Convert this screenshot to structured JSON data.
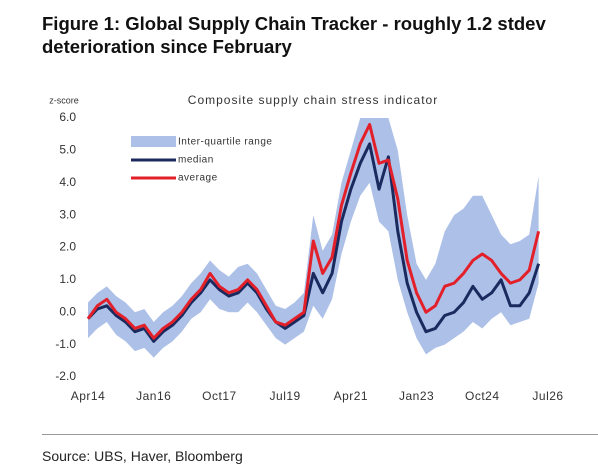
{
  "figure_title": [
    "Figure 1: Global Supply Chain Tracker - roughly 1.2 stdev",
    "deterioration since February"
  ],
  "source": "Source: UBS, Haver, Bloomberg",
  "chart_data": {
    "type": "line",
    "title": "Composite supply chain stress indicator",
    "y_label": "z-score",
    "categories": [
      "Apr14",
      null,
      null,
      null,
      null,
      null,
      null,
      "Jan16",
      null,
      null,
      null,
      null,
      null,
      null,
      "Oct17",
      null,
      null,
      null,
      null,
      null,
      null,
      "Jul19",
      null,
      null,
      null,
      null,
      null,
      null,
      "Apr21",
      null,
      null,
      null,
      null,
      null,
      null,
      "Jan23",
      null,
      null,
      null,
      null,
      null,
      null,
      "Oct24",
      null,
      null,
      null,
      null,
      null,
      null,
      "Jul26"
    ],
    "ylim": [
      -2,
      6
    ],
    "yticks": [
      {
        "value": 6,
        "label": "6.0"
      },
      {
        "value": 5,
        "label": "5.0"
      },
      {
        "value": 4,
        "label": "4.0"
      },
      {
        "value": 3,
        "label": "3.0"
      },
      {
        "value": 2,
        "label": "2.0"
      },
      {
        "value": 1,
        "label": "1.0"
      },
      {
        "value": 0,
        "label": "0.0"
      },
      {
        "value": -1,
        "label": "-1.0"
      },
      {
        "value": -2,
        "label": "-2.0"
      }
    ],
    "band": {
      "name": "Inter-quartile range",
      "color": "#adc0e8",
      "low": [
        -0.8,
        -0.5,
        -0.3,
        -0.7,
        -0.9,
        -1.2,
        -1.1,
        -1.4,
        -1.1,
        -0.9,
        -0.6,
        -0.2,
        0.0,
        0.4,
        0.1,
        0.0,
        0.0,
        0.3,
        0.0,
        -0.4,
        -0.8,
        -1.0,
        -0.8,
        -0.6,
        0.2,
        -0.2,
        0.4,
        1.8,
        2.8,
        3.6,
        4.0,
        2.8,
        2.5,
        1.0,
        0.0,
        -0.8,
        -1.3,
        -1.1,
        -1.0,
        -0.8,
        -0.6,
        -0.3,
        -0.5,
        -0.2,
        0.0,
        -0.4,
        -0.3,
        -0.2,
        0.9,
        null
      ],
      "high": [
        0.3,
        0.6,
        0.8,
        0.5,
        0.3,
        0.0,
        0.1,
        -0.3,
        0.0,
        0.2,
        0.5,
        0.9,
        1.2,
        1.6,
        1.3,
        1.1,
        1.4,
        1.5,
        1.2,
        0.7,
        0.2,
        0.1,
        0.3,
        0.6,
        3.0,
        1.9,
        2.4,
        4.0,
        5.0,
        6.0,
        6.0,
        6.0,
        6.0,
        5.0,
        3.0,
        1.5,
        1.0,
        1.5,
        2.5,
        3.0,
        3.2,
        3.6,
        3.6,
        3.0,
        2.4,
        2.1,
        2.2,
        2.4,
        4.2,
        null
      ]
    },
    "series": [
      {
        "name": "median",
        "color": "#1b2a5e",
        "values": [
          -0.2,
          0.1,
          0.2,
          -0.1,
          -0.3,
          -0.6,
          -0.5,
          -0.9,
          -0.6,
          -0.4,
          -0.1,
          0.3,
          0.6,
          1.0,
          0.7,
          0.5,
          0.6,
          0.9,
          0.6,
          0.1,
          -0.3,
          -0.5,
          -0.3,
          -0.1,
          1.2,
          0.6,
          1.2,
          2.8,
          3.8,
          4.6,
          5.2,
          3.8,
          4.8,
          2.5,
          0.9,
          0.0,
          -0.6,
          -0.5,
          -0.1,
          0.0,
          0.3,
          0.8,
          0.4,
          0.6,
          1.0,
          0.2,
          0.2,
          0.6,
          1.5,
          null
        ]
      },
      {
        "name": "average",
        "color": "#e3202a",
        "values": [
          -0.2,
          0.2,
          0.4,
          0.0,
          -0.2,
          -0.5,
          -0.4,
          -0.8,
          -0.5,
          -0.3,
          0.0,
          0.4,
          0.7,
          1.2,
          0.8,
          0.6,
          0.7,
          1.0,
          0.7,
          0.2,
          -0.3,
          -0.4,
          -0.2,
          0.0,
          2.2,
          1.2,
          1.7,
          3.3,
          4.3,
          5.2,
          5.8,
          4.6,
          4.7,
          3.5,
          1.6,
          0.6,
          0.0,
          0.2,
          0.8,
          0.9,
          1.2,
          1.6,
          1.8,
          1.6,
          1.2,
          0.9,
          1.0,
          1.3,
          2.5,
          null
        ]
      }
    ]
  }
}
